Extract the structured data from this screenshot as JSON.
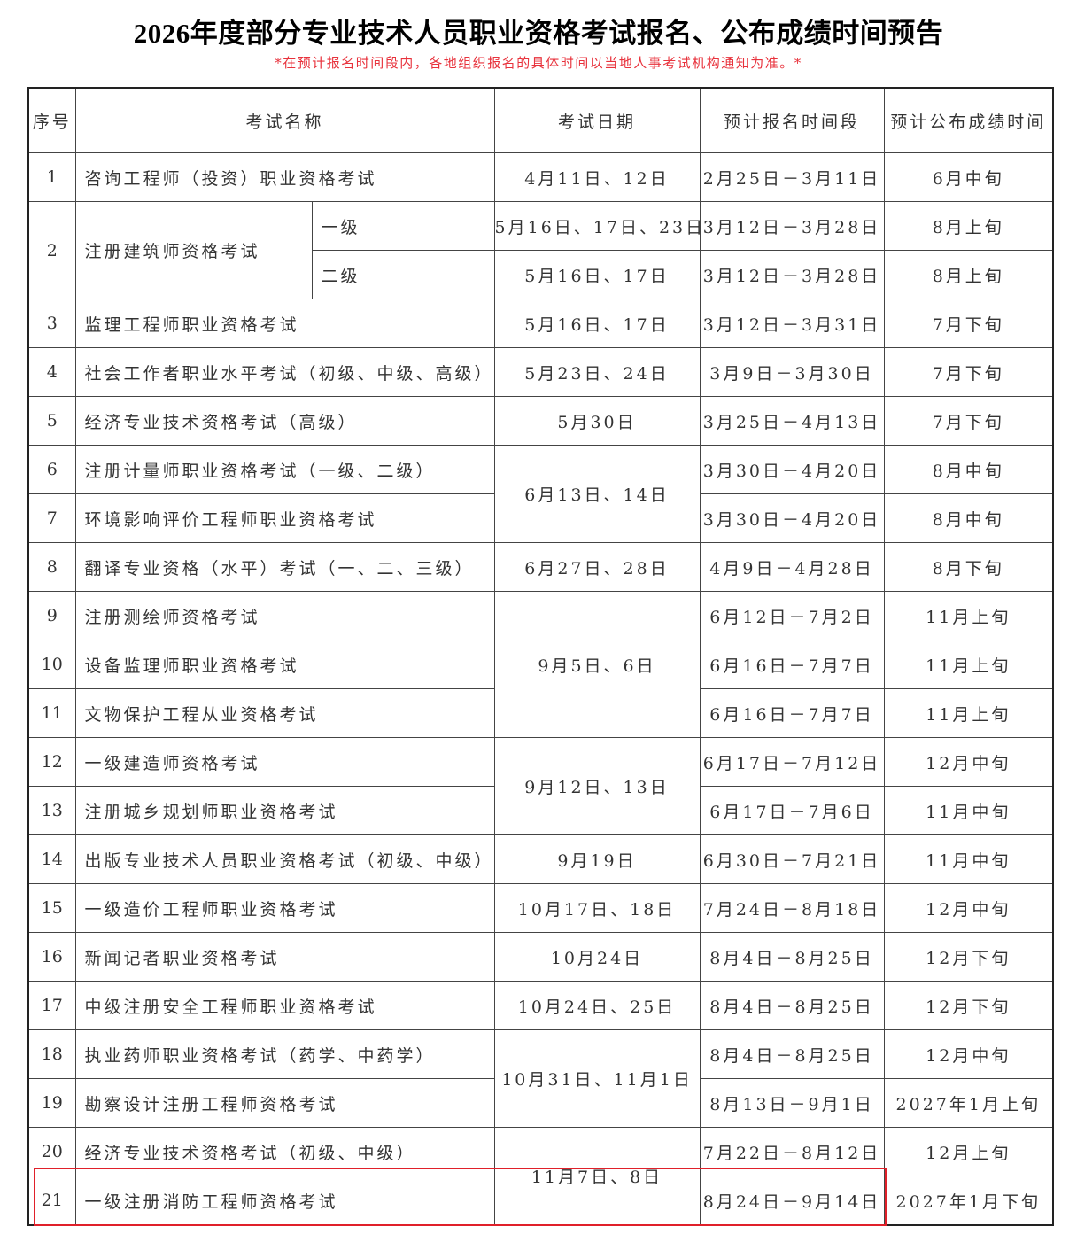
{
  "title": "2026年度部分专业技术人员职业资格考试报名、公布成绩时间预告",
  "subtitle": "*在预计报名时间段内，各地组织报名的具体时间以当地人事考试机构通知为准。*",
  "headers": [
    "序号",
    "考试名称",
    "考试日期",
    "预计报名时间段",
    "预计公布成绩时间"
  ],
  "highlight_color": "#e0202a",
  "rows": [
    {
      "seq": "1",
      "name": "咨询工程师（投资）职业资格考试",
      "date": "4月11日、12日",
      "reg": "2月25日－3月11日",
      "result": "6月中旬"
    },
    {
      "seq": "2",
      "name": "注册建筑师资格考试",
      "name_rowspan": 2,
      "level": "一级",
      "date": "5月16日、17日、23日",
      "reg": "3月12日－3月28日",
      "result": "8月上旬"
    },
    {
      "level": "二级",
      "date": "5月16日、17日",
      "reg": "3月12日－3月28日",
      "result": "8月上旬"
    },
    {
      "seq": "3",
      "name": "监理工程师职业资格考试",
      "date": "5月16日、17日",
      "reg": "3月12日－3月31日",
      "result": "7月下旬"
    },
    {
      "seq": "4",
      "name": "社会工作者职业水平考试（初级、中级、高级）",
      "date": "5月23日、24日",
      "reg": "3月9日－3月30日",
      "result": "7月下旬"
    },
    {
      "seq": "5",
      "name": "经济专业技术资格考试（高级）",
      "date": "5月30日",
      "reg": "3月25日－4月13日",
      "result": "7月下旬"
    },
    {
      "seq": "6",
      "name": "注册计量师职业资格考试（一级、二级）",
      "date": "6月13日、14日",
      "date_rowspan": 2,
      "reg": "3月30日－4月20日",
      "result": "8月中旬"
    },
    {
      "seq": "7",
      "name": "环境影响评价工程师职业资格考试",
      "reg": "3月30日－4月20日",
      "result": "8月中旬"
    },
    {
      "seq": "8",
      "name": "翻译专业资格（水平）考试（一、二、三级）",
      "date": "6月27日、28日",
      "reg": "4月9日－4月28日",
      "result": "8月下旬"
    },
    {
      "seq": "9",
      "name": "注册测绘师资格考试",
      "date": "9月5日、6日",
      "date_rowspan": 3,
      "reg": "6月12日－7月2日",
      "result": "11月上旬"
    },
    {
      "seq": "10",
      "name": "设备监理师职业资格考试",
      "reg": "6月16日－7月7日",
      "result": "11月上旬"
    },
    {
      "seq": "11",
      "name": "文物保护工程从业资格考试",
      "reg": "6月16日－7月7日",
      "result": "11月上旬"
    },
    {
      "seq": "12",
      "name": "一级建造师资格考试",
      "date": "9月12日、13日",
      "date_rowspan": 2,
      "reg": "6月17日－7月12日",
      "result": "12月中旬"
    },
    {
      "seq": "13",
      "name": "注册城乡规划师职业资格考试",
      "reg": "6月17日－7月6日",
      "result": "11月中旬"
    },
    {
      "seq": "14",
      "name": "出版专业技术人员职业资格考试（初级、中级）",
      "date": "9月19日",
      "reg": "6月30日－7月21日",
      "result": "11月中旬"
    },
    {
      "seq": "15",
      "name": "一级造价工程师职业资格考试",
      "date": "10月17日、18日",
      "reg": "7月24日－8月18日",
      "result": "12月中旬"
    },
    {
      "seq": "16",
      "name": "新闻记者职业资格考试",
      "date": "10月24日",
      "reg": "8月4日－8月25日",
      "result": "12月下旬"
    },
    {
      "seq": "17",
      "name": "中级注册安全工程师职业资格考试",
      "date": "10月24日、25日",
      "reg": "8月4日－8月25日",
      "result": "12月下旬"
    },
    {
      "seq": "18",
      "name": "执业药师职业资格考试（药学、中药学）",
      "date": "10月31日、11月1日",
      "date_rowspan": 2,
      "reg": "8月4日－8月25日",
      "result": "12月中旬"
    },
    {
      "seq": "19",
      "name": "勘察设计注册工程师资格考试",
      "reg": "8月13日－9月1日",
      "result": "2027年1月上旬"
    },
    {
      "seq": "20",
      "name": "经济专业技术资格考试（初级、中级）",
      "date": "11月7日、8日",
      "date_rowspan": 2,
      "reg": "7月22日－8月12日",
      "result": "12月上旬"
    },
    {
      "seq": "21",
      "name": "一级注册消防工程师资格考试",
      "reg": "8月24日－9月14日",
      "result": "2027年1月下旬"
    }
  ]
}
